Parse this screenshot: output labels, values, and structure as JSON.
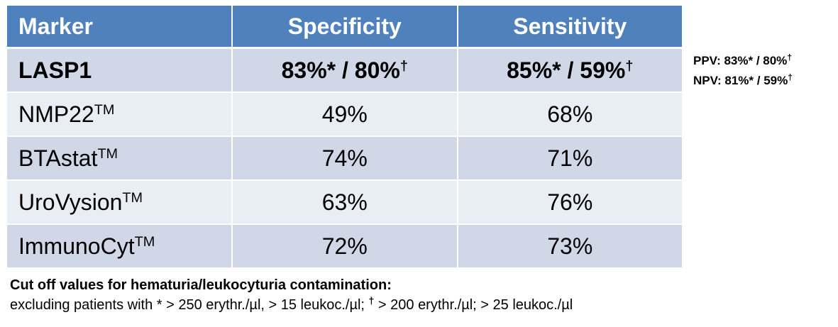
{
  "headers": {
    "marker": "Marker",
    "specificity": "Specificity",
    "sensitivity": "Sensitivity"
  },
  "rows": [
    {
      "marker": "LASP1",
      "marker_sup": "",
      "spec_a": "83%*",
      "spec_b": " / 80%",
      "spec_sup": "†",
      "sens_a": "85%*",
      "sens_b": " / 59%",
      "sens_sup": "†"
    },
    {
      "marker": "NMP22",
      "marker_sup": "TM",
      "spec": "49%",
      "sens": "68%"
    },
    {
      "marker": "BTAstat",
      "marker_sup": "TM",
      "spec": "74%",
      "sens": "71%"
    },
    {
      "marker": "UroVysion",
      "marker_sup": "TM",
      "spec": "63%",
      "sens": "76%"
    },
    {
      "marker": "ImmunoCyt",
      "marker_sup": "TM",
      "spec": "72%",
      "sens": "73%"
    }
  ],
  "side": {
    "ppv": "PPV: 83%* / 80%",
    "ppv_sup": "†",
    "npv": "NPV: 81%* / 59%",
    "npv_sup": "†"
  },
  "footer": {
    "title": "Cut off values for hematuria/leukocyturia contamination:",
    "text_a": "excluding patients with * > 250 erythr./µl, > 15 leukoc./µl; ",
    "dagger": "†",
    "text_b": "  > 200 erythr./µl; > 25 leukoc./µl"
  },
  "colors": {
    "header": "#4f81bd",
    "row_odd": "#d0d8e8",
    "row_even": "#e9edf4"
  }
}
